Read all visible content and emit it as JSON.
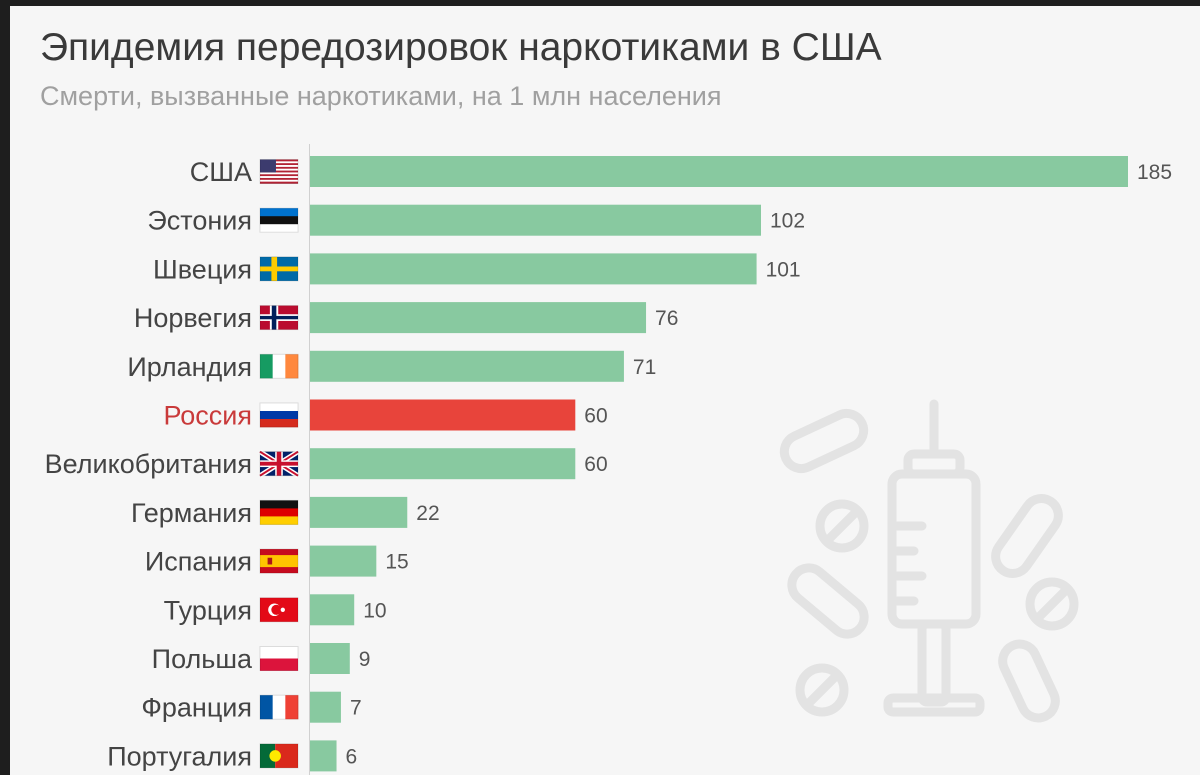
{
  "chart_data": {
    "type": "bar",
    "orientation": "horizontal",
    "title": "Эпидемия передозировок наркотиками в США",
    "subtitle": "Смерти, вызванные наркотиками, на 1 млн населения",
    "categories": [
      "США",
      "Эстония",
      "Швеция",
      "Норвегия",
      "Ирландия",
      "Россия",
      "Великобритания",
      "Германия",
      "Испания",
      "Турция",
      "Польша",
      "Франция",
      "Португалия"
    ],
    "values": [
      185,
      102,
      101,
      76,
      71,
      60,
      60,
      22,
      15,
      10,
      9,
      7,
      6
    ],
    "flags": [
      "us",
      "ee",
      "se",
      "no",
      "ie",
      "ru",
      "gb",
      "de",
      "es",
      "tr",
      "pl",
      "fr",
      "pt"
    ],
    "highlight": "Россия",
    "xlim": [
      0,
      185
    ],
    "grid": false,
    "colors": {
      "bar": "#88c9a0",
      "highlight": "#e8443b",
      "highlight_label": "#c93a3a"
    }
  }
}
